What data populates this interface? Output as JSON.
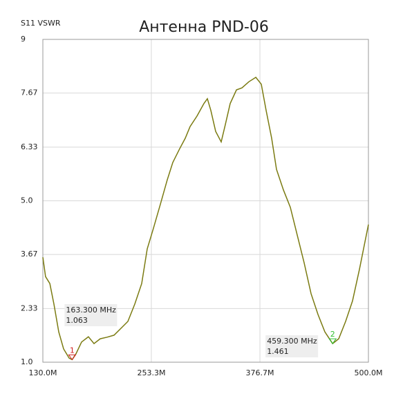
{
  "chart_data": {
    "type": "line",
    "title": "Антенна PND-06",
    "y_label": "S11 VSWR",
    "x": [
      130,
      133.1,
      137.9,
      142.6,
      148.1,
      153.6,
      159.9,
      163.3,
      167.7,
      174,
      181.8,
      188.1,
      195.2,
      203,
      210.9,
      218.8,
      226.6,
      234.5,
      242.3,
      248.6,
      255.7,
      263.6,
      271.4,
      277.7,
      285.5,
      291.8,
      297.3,
      305.2,
      313,
      317,
      320.9,
      326.4,
      332.7,
      337.4,
      342.9,
      350,
      356.3,
      364.1,
      372,
      378.2,
      383.7,
      390,
      395.5,
      403.4,
      411.2,
      419.1,
      426.9,
      434.8,
      442.7,
      450.5,
      459.3,
      466.2,
      474.1,
      481.9,
      489.8,
      500
    ],
    "series": [
      {
        "name": "S11 VSWR",
        "color": "#7a7a10",
        "values": [
          3.6,
          3.12,
          2.95,
          2.44,
          1.75,
          1.33,
          1.1,
          1.063,
          1.21,
          1.5,
          1.63,
          1.46,
          1.58,
          1.62,
          1.67,
          1.84,
          2.01,
          2.44,
          2.95,
          3.81,
          4.32,
          4.92,
          5.52,
          5.95,
          6.29,
          6.55,
          6.84,
          7.1,
          7.41,
          7.53,
          7.24,
          6.72,
          6.46,
          6.89,
          7.41,
          7.75,
          7.8,
          7.95,
          8.06,
          7.89,
          7.24,
          6.55,
          5.78,
          5.27,
          4.84,
          4.15,
          3.47,
          2.7,
          2.18,
          1.75,
          1.461,
          1.58,
          2.01,
          2.52,
          3.3,
          4.41
        ]
      }
    ],
    "xlim": [
      130,
      500
    ],
    "xticks": [
      {
        "value": 130,
        "label": "130.0M"
      },
      {
        "value": 253.3,
        "label": "253.3M"
      },
      {
        "value": 376.7,
        "label": "376.7M"
      },
      {
        "value": 500,
        "label": "500.0M"
      }
    ],
    "ylim": [
      1,
      9
    ],
    "yticks": [
      {
        "value": 1,
        "label": "1.0"
      },
      2.33,
      3.67,
      {
        "value": 5,
        "label": "5.0"
      },
      6.33,
      7.67,
      9
    ],
    "grid": true,
    "markers": [
      {
        "label": "1",
        "x": 163.3,
        "x_label": "163.300 MHz",
        "value": 1.063,
        "color": "#d02020"
      },
      {
        "label": "2",
        "x": 459.3,
        "x_label": "459.300 MHz",
        "value": 1.461,
        "color": "#30c030"
      }
    ]
  }
}
